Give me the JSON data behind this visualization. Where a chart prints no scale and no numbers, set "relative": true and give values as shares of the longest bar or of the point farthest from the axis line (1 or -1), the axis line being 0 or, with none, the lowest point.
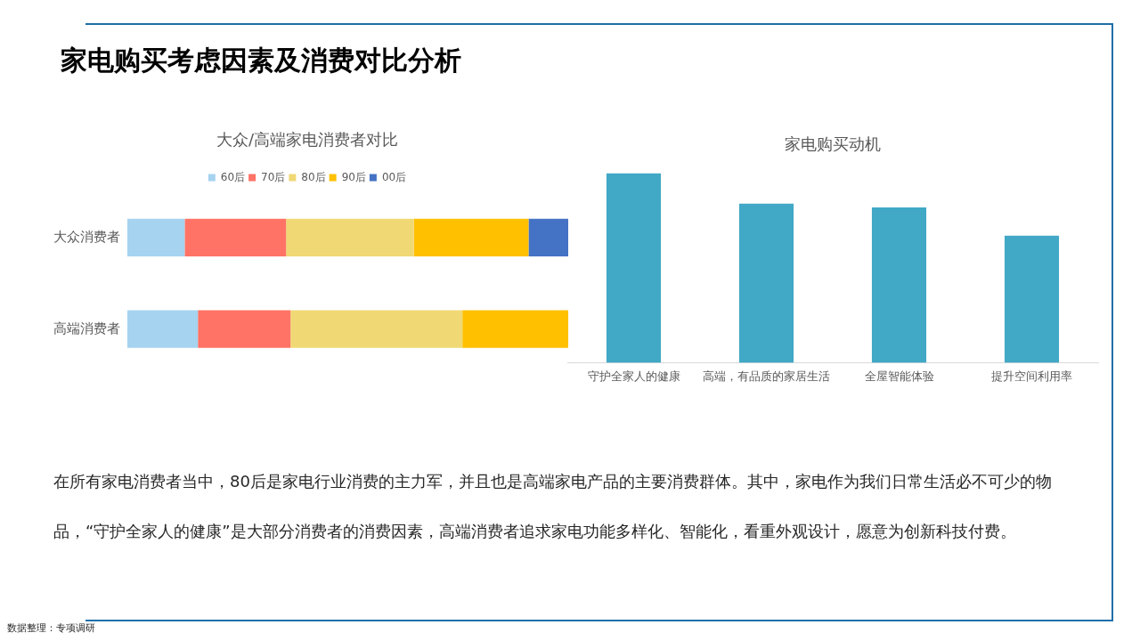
{
  "chart_data": [
    {
      "type": "other",
      "title": "家电购买考虑因素及消费对比分析",
      "annotations": [
        "在所有家电消费者当中，80后是家电行业消费的主力军，并且也是高端家电产品的主要消费群体。其中，家电作为我们日常生活必不可少的物品，“守护全家人的健康”是大部分消费者的消费因素，高端消费者追求家电功能多样化、智能化，看重外观设计，愿意为创新科技付费。",
        "数据整理：专项调研"
      ]
    },
    {
      "type": "bar",
      "title": "大众/高端家电消费者对比",
      "orientation": "horizontal",
      "stacked": true,
      "relative": true,
      "legend": "top",
      "categories": [
        "大众消费者",
        "高端消费者"
      ],
      "series": [
        {
          "name": "60后",
          "color": "#a5d3f0",
          "values": [
            0.13,
            0.16
          ]
        },
        {
          "name": "70后",
          "color": "#ff7366",
          "values": [
            0.23,
            0.21
          ]
        },
        {
          "name": "80后",
          "color": "#f0d874",
          "values": [
            0.29,
            0.39
          ]
        },
        {
          "name": "90后",
          "color": "#ffc000",
          "values": [
            0.26,
            0.24
          ]
        },
        {
          "name": "00后",
          "color": "#4472c4",
          "values": [
            0.09,
            0
          ]
        }
      ]
    },
    {
      "type": "bar",
      "title": "家电购买动机",
      "relative": true,
      "categories": [
        "守护全家人的健康",
        "高端，有品质的家居生活",
        "全屋智能体验",
        "提升空间利用率"
      ],
      "color": "#41a8c6",
      "values": [
        1,
        0.84,
        0.82,
        0.67
      ]
    }
  ]
}
